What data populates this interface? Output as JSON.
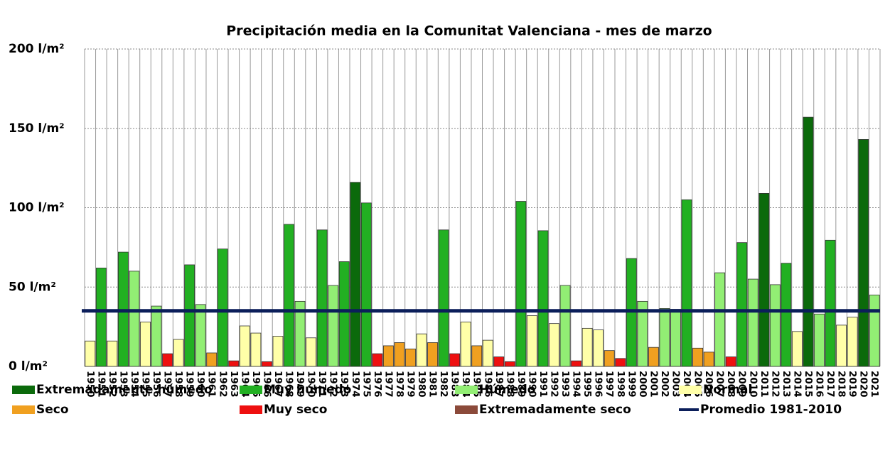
{
  "chart_data": {
    "type": "bar",
    "title": "Precipitación media en la Comunitat Valenciana - mes de marzo",
    "categories": [
      "1950",
      "1951",
      "1952",
      "1953",
      "1954",
      "1955",
      "1956",
      "1957",
      "1958",
      "1959",
      "1960",
      "1961",
      "1962",
      "1963",
      "1964",
      "1965",
      "1966",
      "1967",
      "1968",
      "1969",
      "1970",
      "1971",
      "1972",
      "1973",
      "1974",
      "1975",
      "1976",
      "1977",
      "1978",
      "1979",
      "1980",
      "1981",
      "1982",
      "1983",
      "1984",
      "1985",
      "1986",
      "1987",
      "1988",
      "1989",
      "1990",
      "1991",
      "1992",
      "1993",
      "1994",
      "1995",
      "1996",
      "1997",
      "1998",
      "1999",
      "2000",
      "2001",
      "2002",
      "2003",
      "2004",
      "2005",
      "2006",
      "2007",
      "2008",
      "2009",
      "2010",
      "2011",
      "2012",
      "2013",
      "2014",
      "2015",
      "2016",
      "2017",
      "2018",
      "2019",
      "2020",
      "2021"
    ],
    "values": [
      16,
      62,
      16,
      72,
      60,
      28,
      38,
      8,
      17,
      64,
      39,
      8.5,
      74,
      3.5,
      25.5,
      21,
      3,
      19,
      89.5,
      41,
      18,
      86,
      51,
      66,
      116,
      103,
      8,
      13,
      15,
      11,
      20.5,
      15,
      86,
      8,
      28,
      13,
      16.5,
      6,
      3,
      104,
      32,
      85.5,
      27,
      51,
      3.5,
      24,
      23,
      10,
      5,
      68,
      41,
      12,
      36.5,
      36,
      105,
      11.5,
      9,
      59,
      6,
      78,
      55,
      109,
      51.5,
      65,
      22,
      157,
      33,
      79.5,
      26,
      31,
      143,
      45
    ],
    "bar_class": [
      3,
      1,
      3,
      1,
      2,
      3,
      2,
      5,
      3,
      1,
      2,
      4,
      1,
      5,
      3,
      3,
      5,
      3,
      1,
      2,
      3,
      1,
      2,
      1,
      0,
      1,
      5,
      4,
      4,
      4,
      3,
      4,
      1,
      5,
      3,
      4,
      3,
      5,
      5,
      1,
      3,
      1,
      3,
      2,
      5,
      3,
      3,
      4,
      5,
      1,
      2,
      4,
      2,
      2,
      1,
      4,
      4,
      2,
      5,
      1,
      2,
      0,
      2,
      1,
      3,
      0,
      2,
      1,
      3,
      3,
      0,
      2
    ],
    "series": [
      {
        "name": "Extremadamente húmedo",
        "color": "#0b6a0b"
      },
      {
        "name": "Muy húmedo",
        "color": "#22b022"
      },
      {
        "name": "Húmedo",
        "color": "#92ee74"
      },
      {
        "name": "Normal",
        "color": "#ffffa8"
      },
      {
        "name": "Seco",
        "color": "#f0a020"
      },
      {
        "name": "Muy seco",
        "color": "#ee1010"
      },
      {
        "name": "Extremadamente seco",
        "color": "#8b4a3a"
      }
    ],
    "average": {
      "name": "Promedio 1981-2010",
      "value": 35,
      "color": "#0b1e5a"
    },
    "ylim": [
      0,
      200
    ],
    "yticks": [
      {
        "value": 0,
        "label": "0 l/m²"
      },
      {
        "value": 50,
        "label": "50 l/m²"
      },
      {
        "value": 100,
        "label": "100 l/m²"
      },
      {
        "value": 150,
        "label": "150 l/m²"
      },
      {
        "value": 200,
        "label": "200 l/m²"
      }
    ],
    "grid": true
  }
}
